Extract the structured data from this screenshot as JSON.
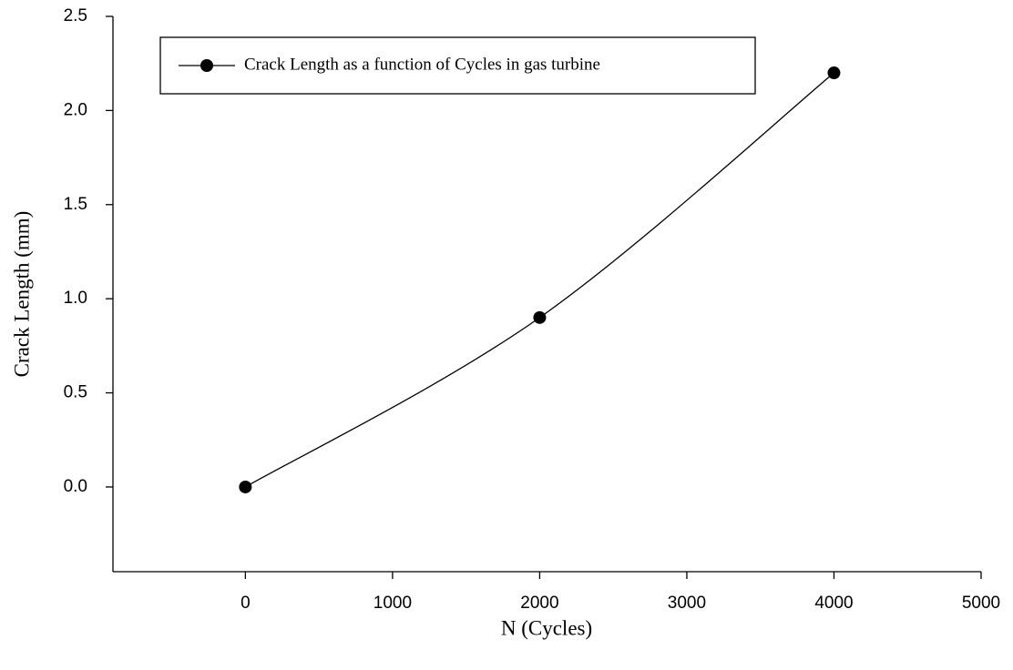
{
  "chart_data": {
    "type": "line",
    "x_label": "N (Cycles)",
    "y_label": "Crack Length (mm)",
    "x": [
      0,
      2000,
      4000
    ],
    "series": [
      {
        "name": "Crack Length as a function of Cycles in gas turbine",
        "color": "#000000",
        "values": [
          0,
          0.9,
          2.2
        ]
      }
    ],
    "xlim": [
      -900,
      5000
    ],
    "xticks": [
      0,
      1000,
      2000,
      3000,
      4000,
      5000
    ],
    "ylim": [
      -0.45,
      2.5
    ],
    "yticks": [
      {
        "value": 0,
        "label": "0.0"
      },
      0.5,
      {
        "value": 1,
        "label": "1.0"
      },
      1.5,
      {
        "value": 2,
        "label": "2.0"
      },
      2.5
    ],
    "smooth": true,
    "legend": "upper left"
  }
}
